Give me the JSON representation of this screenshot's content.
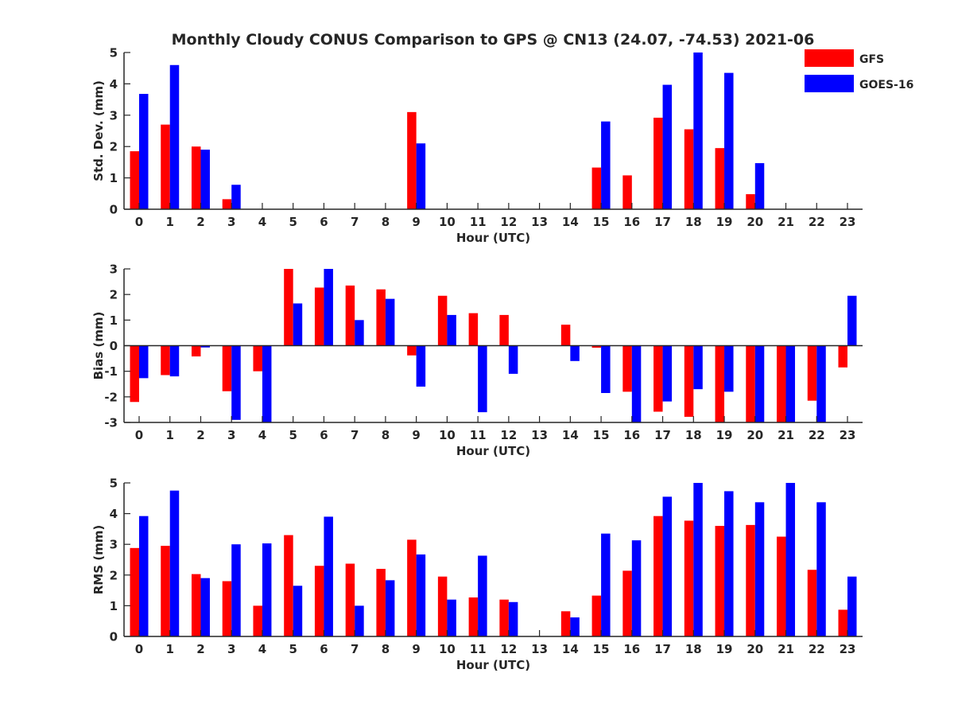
{
  "title": "Monthly Cloudy CONUS Comparison to GPS @ CN13 (24.07, -74.53) 2021-06",
  "legend": {
    "location": "top-right",
    "entries": [
      {
        "label": "GFS",
        "color": "#ff0000"
      },
      {
        "label": "GOES-16",
        "color": "#0000ff"
      }
    ]
  },
  "chart_data": [
    {
      "type": "bar",
      "xlabel": "Hour (UTC)",
      "ylabel": "Std. Dev. (mm)",
      "ylim": [
        0,
        5
      ],
      "yticks": [
        "0",
        "1",
        "2",
        "3",
        "4",
        "5"
      ],
      "categories": [
        "0",
        "1",
        "2",
        "3",
        "4",
        "5",
        "6",
        "7",
        "8",
        "9",
        "10",
        "11",
        "12",
        "13",
        "14",
        "15",
        "16",
        "17",
        "18",
        "19",
        "20",
        "21",
        "22",
        "23"
      ],
      "series": [
        {
          "name": "GFS",
          "color": "#ff0000",
          "values": [
            1.85,
            2.7,
            2.0,
            0.32,
            null,
            null,
            null,
            null,
            null,
            3.1,
            null,
            null,
            null,
            null,
            null,
            1.33,
            1.08,
            2.92,
            2.55,
            1.95,
            0.48,
            null,
            null,
            null
          ]
        },
        {
          "name": "GOES-16",
          "color": "#0000ff",
          "values": [
            3.68,
            4.6,
            1.9,
            0.78,
            null,
            null,
            null,
            null,
            null,
            2.1,
            null,
            null,
            null,
            null,
            null,
            2.8,
            null,
            3.97,
            5.0,
            4.35,
            1.47,
            null,
            null,
            null
          ]
        }
      ]
    },
    {
      "type": "bar",
      "xlabel": "Hour (UTC)",
      "ylabel": "Bias (mm)",
      "ylim": [
        -3,
        3
      ],
      "yticks": [
        "-3",
        "-2",
        "-1",
        "0",
        "1",
        "2",
        "3"
      ],
      "categories": [
        "0",
        "1",
        "2",
        "3",
        "4",
        "5",
        "6",
        "7",
        "8",
        "9",
        "10",
        "11",
        "12",
        "13",
        "14",
        "15",
        "16",
        "17",
        "18",
        "19",
        "20",
        "21",
        "22",
        "23"
      ],
      "series": [
        {
          "name": "GFS",
          "color": "#ff0000",
          "values": [
            -2.2,
            -1.15,
            -0.42,
            -1.78,
            -1.0,
            3.0,
            2.27,
            2.35,
            2.2,
            -0.38,
            1.95,
            1.27,
            1.2,
            null,
            0.82,
            -0.08,
            -1.8,
            -2.58,
            -2.78,
            -3.0,
            -3.0,
            -3.0,
            -2.15,
            -0.85
          ]
        },
        {
          "name": "GOES-16",
          "color": "#0000ff",
          "values": [
            -1.27,
            -1.2,
            -0.07,
            -2.9,
            -3.0,
            1.65,
            3.0,
            1.0,
            1.83,
            -1.6,
            1.2,
            -2.6,
            -1.1,
            null,
            -0.6,
            -1.85,
            -3.0,
            -2.18,
            -1.7,
            -1.8,
            -3.0,
            -3.0,
            -3.0,
            1.95
          ]
        }
      ]
    },
    {
      "type": "bar",
      "xlabel": "Hour (UTC)",
      "ylabel": "RMS (mm)",
      "ylim": [
        0,
        5
      ],
      "yticks": [
        "0",
        "1",
        "2",
        "3",
        "4",
        "5"
      ],
      "categories": [
        "0",
        "1",
        "2",
        "3",
        "4",
        "5",
        "6",
        "7",
        "8",
        "9",
        "10",
        "11",
        "12",
        "13",
        "14",
        "15",
        "16",
        "17",
        "18",
        "19",
        "20",
        "21",
        "22",
        "23"
      ],
      "series": [
        {
          "name": "GFS",
          "color": "#ff0000",
          "values": [
            2.88,
            2.95,
            2.03,
            1.8,
            1.0,
            3.3,
            2.3,
            2.37,
            2.2,
            3.15,
            1.95,
            1.27,
            1.2,
            null,
            0.82,
            1.33,
            2.14,
            3.92,
            3.77,
            3.6,
            3.63,
            3.25,
            2.17,
            0.87
          ]
        },
        {
          "name": "GOES-16",
          "color": "#0000ff",
          "values": [
            3.92,
            4.75,
            1.9,
            3.0,
            3.03,
            1.65,
            3.9,
            1.0,
            1.83,
            2.67,
            1.2,
            2.63,
            1.12,
            null,
            0.62,
            3.35,
            3.13,
            4.55,
            5.0,
            4.73,
            4.37,
            5.0,
            4.37,
            1.95
          ]
        }
      ]
    }
  ]
}
